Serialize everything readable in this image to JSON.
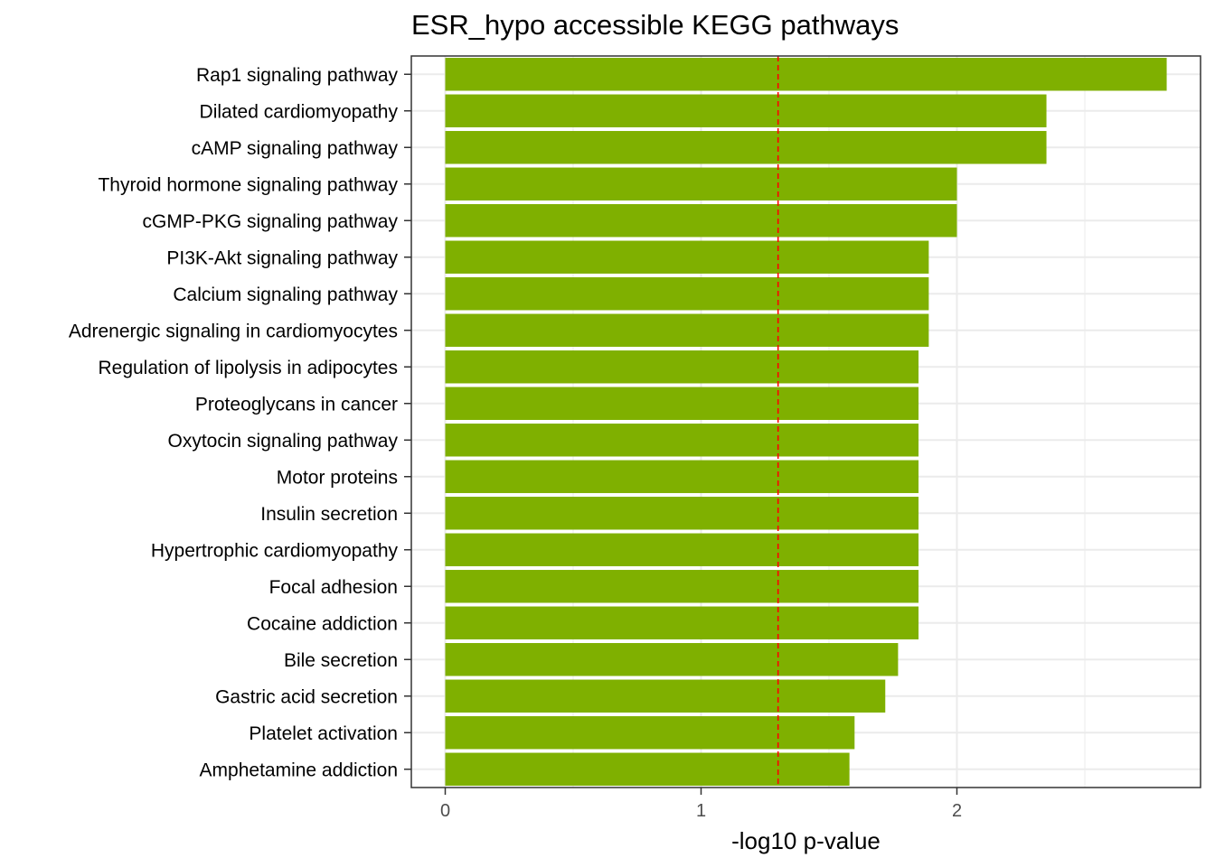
{
  "chart_data": {
    "type": "bar",
    "orientation": "horizontal",
    "title": "ESR_hypo accessible KEGG pathways",
    "xlabel": "-log10 p-value",
    "ylabel": "",
    "categories": [
      "Rap1 signaling pathway",
      "Dilated cardiomyopathy",
      "cAMP signaling pathway",
      "Thyroid hormone signaling pathway",
      "cGMP-PKG signaling pathway",
      "PI3K-Akt signaling pathway",
      "Calcium signaling pathway",
      "Adrenergic signaling in cardiomyocytes",
      "Regulation of lipolysis in adipocytes",
      "Proteoglycans in cancer",
      "Oxytocin signaling pathway",
      "Motor proteins",
      "Insulin secretion",
      "Hypertrophic cardiomyopathy",
      "Focal adhesion",
      "Cocaine addiction",
      "Bile secretion",
      "Gastric acid secretion",
      "Platelet activation",
      "Amphetamine addiction"
    ],
    "values": [
      2.82,
      2.35,
      2.35,
      2.0,
      2.0,
      1.89,
      1.89,
      1.89,
      1.85,
      1.85,
      1.85,
      1.85,
      1.85,
      1.85,
      1.85,
      1.85,
      1.77,
      1.72,
      1.6,
      1.58
    ],
    "xlim": [
      -0.13,
      2.95
    ],
    "xticks": [
      "0",
      "1",
      "2"
    ],
    "xtick_values": [
      0,
      1,
      2
    ],
    "reference_line": {
      "value": 1.301,
      "color": "#ff0000",
      "style": "dashed"
    },
    "bar_color": "#7fb000",
    "grid": true
  }
}
